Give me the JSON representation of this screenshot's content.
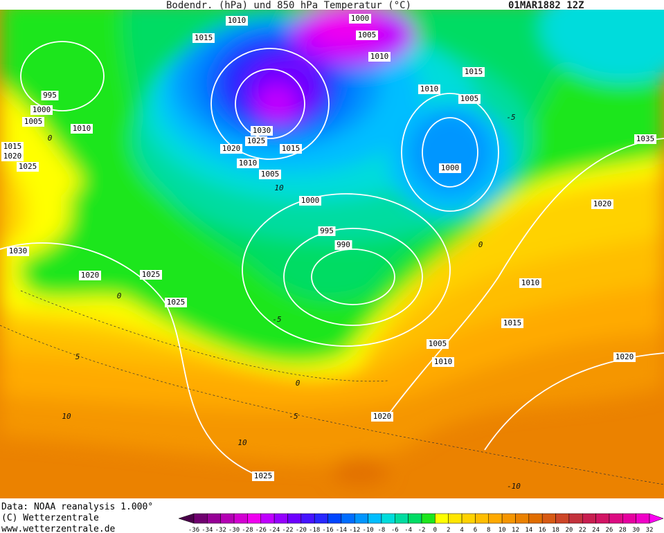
{
  "title": "Bodendr. (hPa)  und 850 hPa Temperatur (°C)",
  "timestamp": "01MAR1882 12Z",
  "isobar_labels": [
    1010,
    1000,
    1015,
    1005,
    1010,
    995,
    1000,
    1005,
    1010,
    1015,
    1020,
    1025,
    1030,
    1025,
    1020,
    1015,
    1010,
    1005,
    1000,
    995,
    990,
    1015,
    1010,
    1005,
    1000,
    1035,
    1020,
    1030,
    1020,
    1025,
    1025,
    1010,
    1015,
    1005,
    1010,
    1020,
    1020,
    1025
  ],
  "temperature_labels": [
    -5,
    0,
    10,
    0,
    0,
    -5,
    5,
    0,
    -5,
    10,
    10,
    -10
  ],
  "footer": [
    "Data: NOAA reanalysis 1.000°",
    "(C) Wetterzentrale",
    "www.wetterzentrale.de"
  ],
  "colorbar": {
    "labels": [
      -36,
      -34,
      -32,
      -30,
      -28,
      -26,
      -24,
      -22,
      -20,
      -18,
      -16,
      -14,
      -12,
      -10,
      -8,
      -6,
      -4,
      -2,
      0,
      2,
      4,
      6,
      8,
      10,
      12,
      14,
      16,
      18,
      20,
      22,
      24,
      26,
      28,
      30,
      32
    ],
    "colors": [
      "#4a004a",
      "#700070",
      "#960096",
      "#b400b4",
      "#d200d2",
      "#f000f0",
      "#c000ff",
      "#9600ff",
      "#6e00ff",
      "#4614ff",
      "#2828ff",
      "#0046ff",
      "#006eff",
      "#0096ff",
      "#00beff",
      "#00dcdc",
      "#00dca0",
      "#00dc64",
      "#1ee61e",
      "#ffff00",
      "#ffe600",
      "#ffd200",
      "#ffbe00",
      "#ffaa00",
      "#f59600",
      "#eb8200",
      "#e16e00",
      "#d75a14",
      "#cd4628",
      "#c3323c",
      "#c81e50",
      "#d21464",
      "#dc0a82",
      "#e600a0",
      "#f000c8",
      "#fa00f0"
    ]
  }
}
